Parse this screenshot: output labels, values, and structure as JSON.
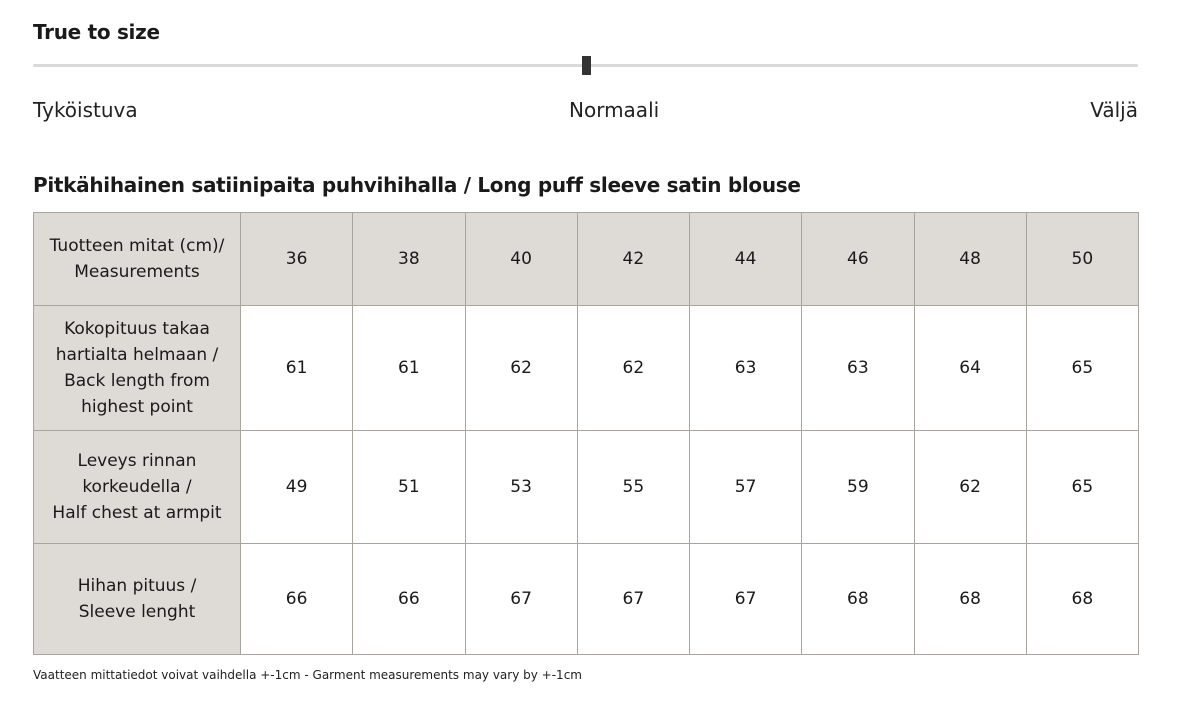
{
  "fit": {
    "title": "True to size",
    "slider_value": 0.5,
    "labels": {
      "left": "Tyköistuva",
      "center": "Normaali",
      "right": "Väljä"
    }
  },
  "size_chart": {
    "title": "Pitkähihainen satiinipaita puhvihihalla / Long puff sleeve satin blouse",
    "header_label": "Tuotteen mitat (cm)/\nMeasurements",
    "sizes": [
      "36",
      "38",
      "40",
      "42",
      "44",
      "46",
      "48",
      "50"
    ],
    "rows": [
      {
        "label": "Kokopituus takaa\nhartialta helmaan /\nBack length from\nhighest point",
        "values": [
          "61",
          "61",
          "62",
          "62",
          "63",
          "63",
          "64",
          "65"
        ]
      },
      {
        "label": "Leveys rinnan\nkorkeudella /\nHalf chest at armpit",
        "values": [
          "49",
          "51",
          "53",
          "55",
          "57",
          "59",
          "62",
          "65"
        ]
      },
      {
        "label": "Hihan pituus /\nSleeve lenght",
        "values": [
          "66",
          "66",
          "67",
          "67",
          "67",
          "68",
          "68",
          "68"
        ]
      }
    ],
    "note": "Vaatteen mittatiedot voivat vaihdella +-1cm - Garment measurements may vary by +-1cm"
  }
}
